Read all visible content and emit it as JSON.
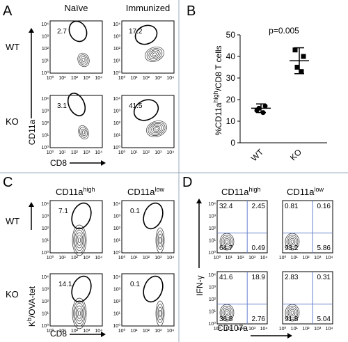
{
  "panel_letters": [
    "A",
    "B",
    "C",
    "D"
  ],
  "flow_tick_labels": [
    "10⁰",
    "10¹",
    "10²",
    "10³",
    "10⁴"
  ],
  "panel_a": {
    "columns": [
      "Naïve",
      "Immunized"
    ],
    "rows": [
      "WT",
      "KO"
    ],
    "y_label": "CD11a",
    "x_label": "CD8",
    "gate_values": [
      "2.7",
      "17.2",
      "3.1",
      "41.5"
    ]
  },
  "panel_c": {
    "columns": [
      {
        "main": "CD11a",
        "sup": "high"
      },
      {
        "main": "CD11a",
        "sup": "low"
      }
    ],
    "rows": [
      "WT",
      "KO"
    ],
    "y_label": {
      "main": "K",
      "sup": "b",
      "rest": "/OVA-tet"
    },
    "x_label": "CD8",
    "gate_values": [
      "7.1",
      "0.1",
      "14.1",
      "0.1"
    ]
  },
  "panel_d": {
    "columns": [
      {
        "main": "CD11a",
        "sup": "high"
      },
      {
        "main": "CD11a",
        "sup": "low"
      }
    ],
    "y_label": "IFN-γ",
    "x_label": "CD107a",
    "quadrants": [
      [
        "32.4",
        "2.45",
        "64.7",
        "0.49"
      ],
      [
        "0.81",
        "0.16",
        "93.2",
        "5.86"
      ],
      [
        "41.6",
        "18.9",
        "36.8",
        "2.76"
      ],
      [
        "2.83",
        "0.31",
        "91.8",
        "5.04"
      ]
    ]
  },
  "chart_data": {
    "type": "scatter",
    "title": "p=0.005",
    "y_label": {
      "main": "%CD11a",
      "sup": "high",
      "rest": "/CD8 T cells"
    },
    "categories": [
      "WT",
      "KO"
    ],
    "series": [
      {
        "name": "WT",
        "color": "#000",
        "values": [
          15,
          17,
          16,
          14
        ],
        "mean": 16,
        "sd": 2
      },
      {
        "name": "KO",
        "color": "#000",
        "values": [
          43,
          40,
          35,
          33
        ],
        "mean": 38,
        "sd": 6
      }
    ],
    "ylim": [
      0,
      50
    ],
    "yticks": [
      0,
      10,
      20,
      30,
      40,
      50
    ]
  }
}
